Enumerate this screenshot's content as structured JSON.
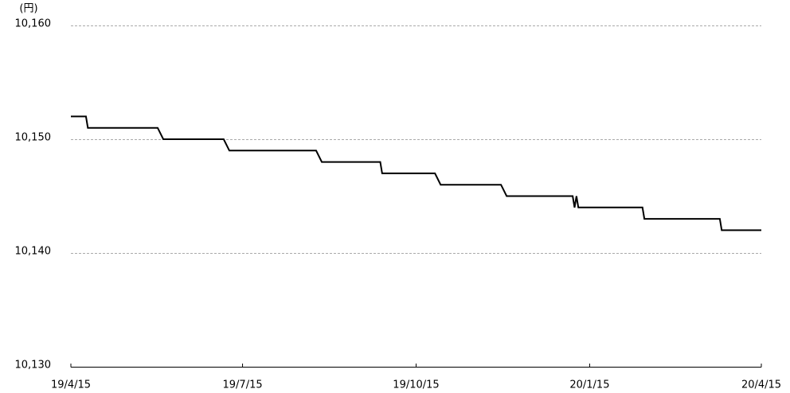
{
  "chart_data": {
    "type": "line",
    "unit_label": "(円)",
    "x": [
      "19/4/15",
      "19/4/23",
      "19/4/24",
      "19/5/31",
      "19/6/3",
      "19/7/5",
      "19/7/8",
      "19/8/23",
      "19/8/26",
      "19/9/26",
      "19/9/27",
      "19/10/25",
      "19/10/28",
      "19/11/29",
      "19/12/2",
      "20/1/6",
      "20/1/7",
      "20/1/8",
      "20/1/9",
      "20/2/12",
      "20/2/13",
      "20/3/24",
      "20/3/25",
      "20/4/15"
    ],
    "series": [
      {
        "name": "price",
        "color": "#000000",
        "values": [
          10152,
          10152,
          10151,
          10151,
          10150,
          10150,
          10149,
          10149,
          10148,
          10148,
          10147,
          10147,
          10146,
          10146,
          10145,
          10145,
          10144,
          10145,
          10144,
          10144,
          10143,
          10143,
          10142,
          10142
        ]
      }
    ],
    "xlim": [
      "19/4/15",
      "20/4/15"
    ],
    "xticks": [
      "19/4/15",
      "19/7/15",
      "19/10/15",
      "20/1/15",
      "20/4/15"
    ],
    "ylim": [
      10130,
      10160
    ],
    "yticks": [
      {
        "value": 10130,
        "label": "10,130"
      },
      {
        "value": 10140,
        "label": "10,140"
      },
      {
        "value": 10150,
        "label": "10,150"
      },
      {
        "value": 10160,
        "label": "10,160"
      }
    ],
    "grid": true
  }
}
